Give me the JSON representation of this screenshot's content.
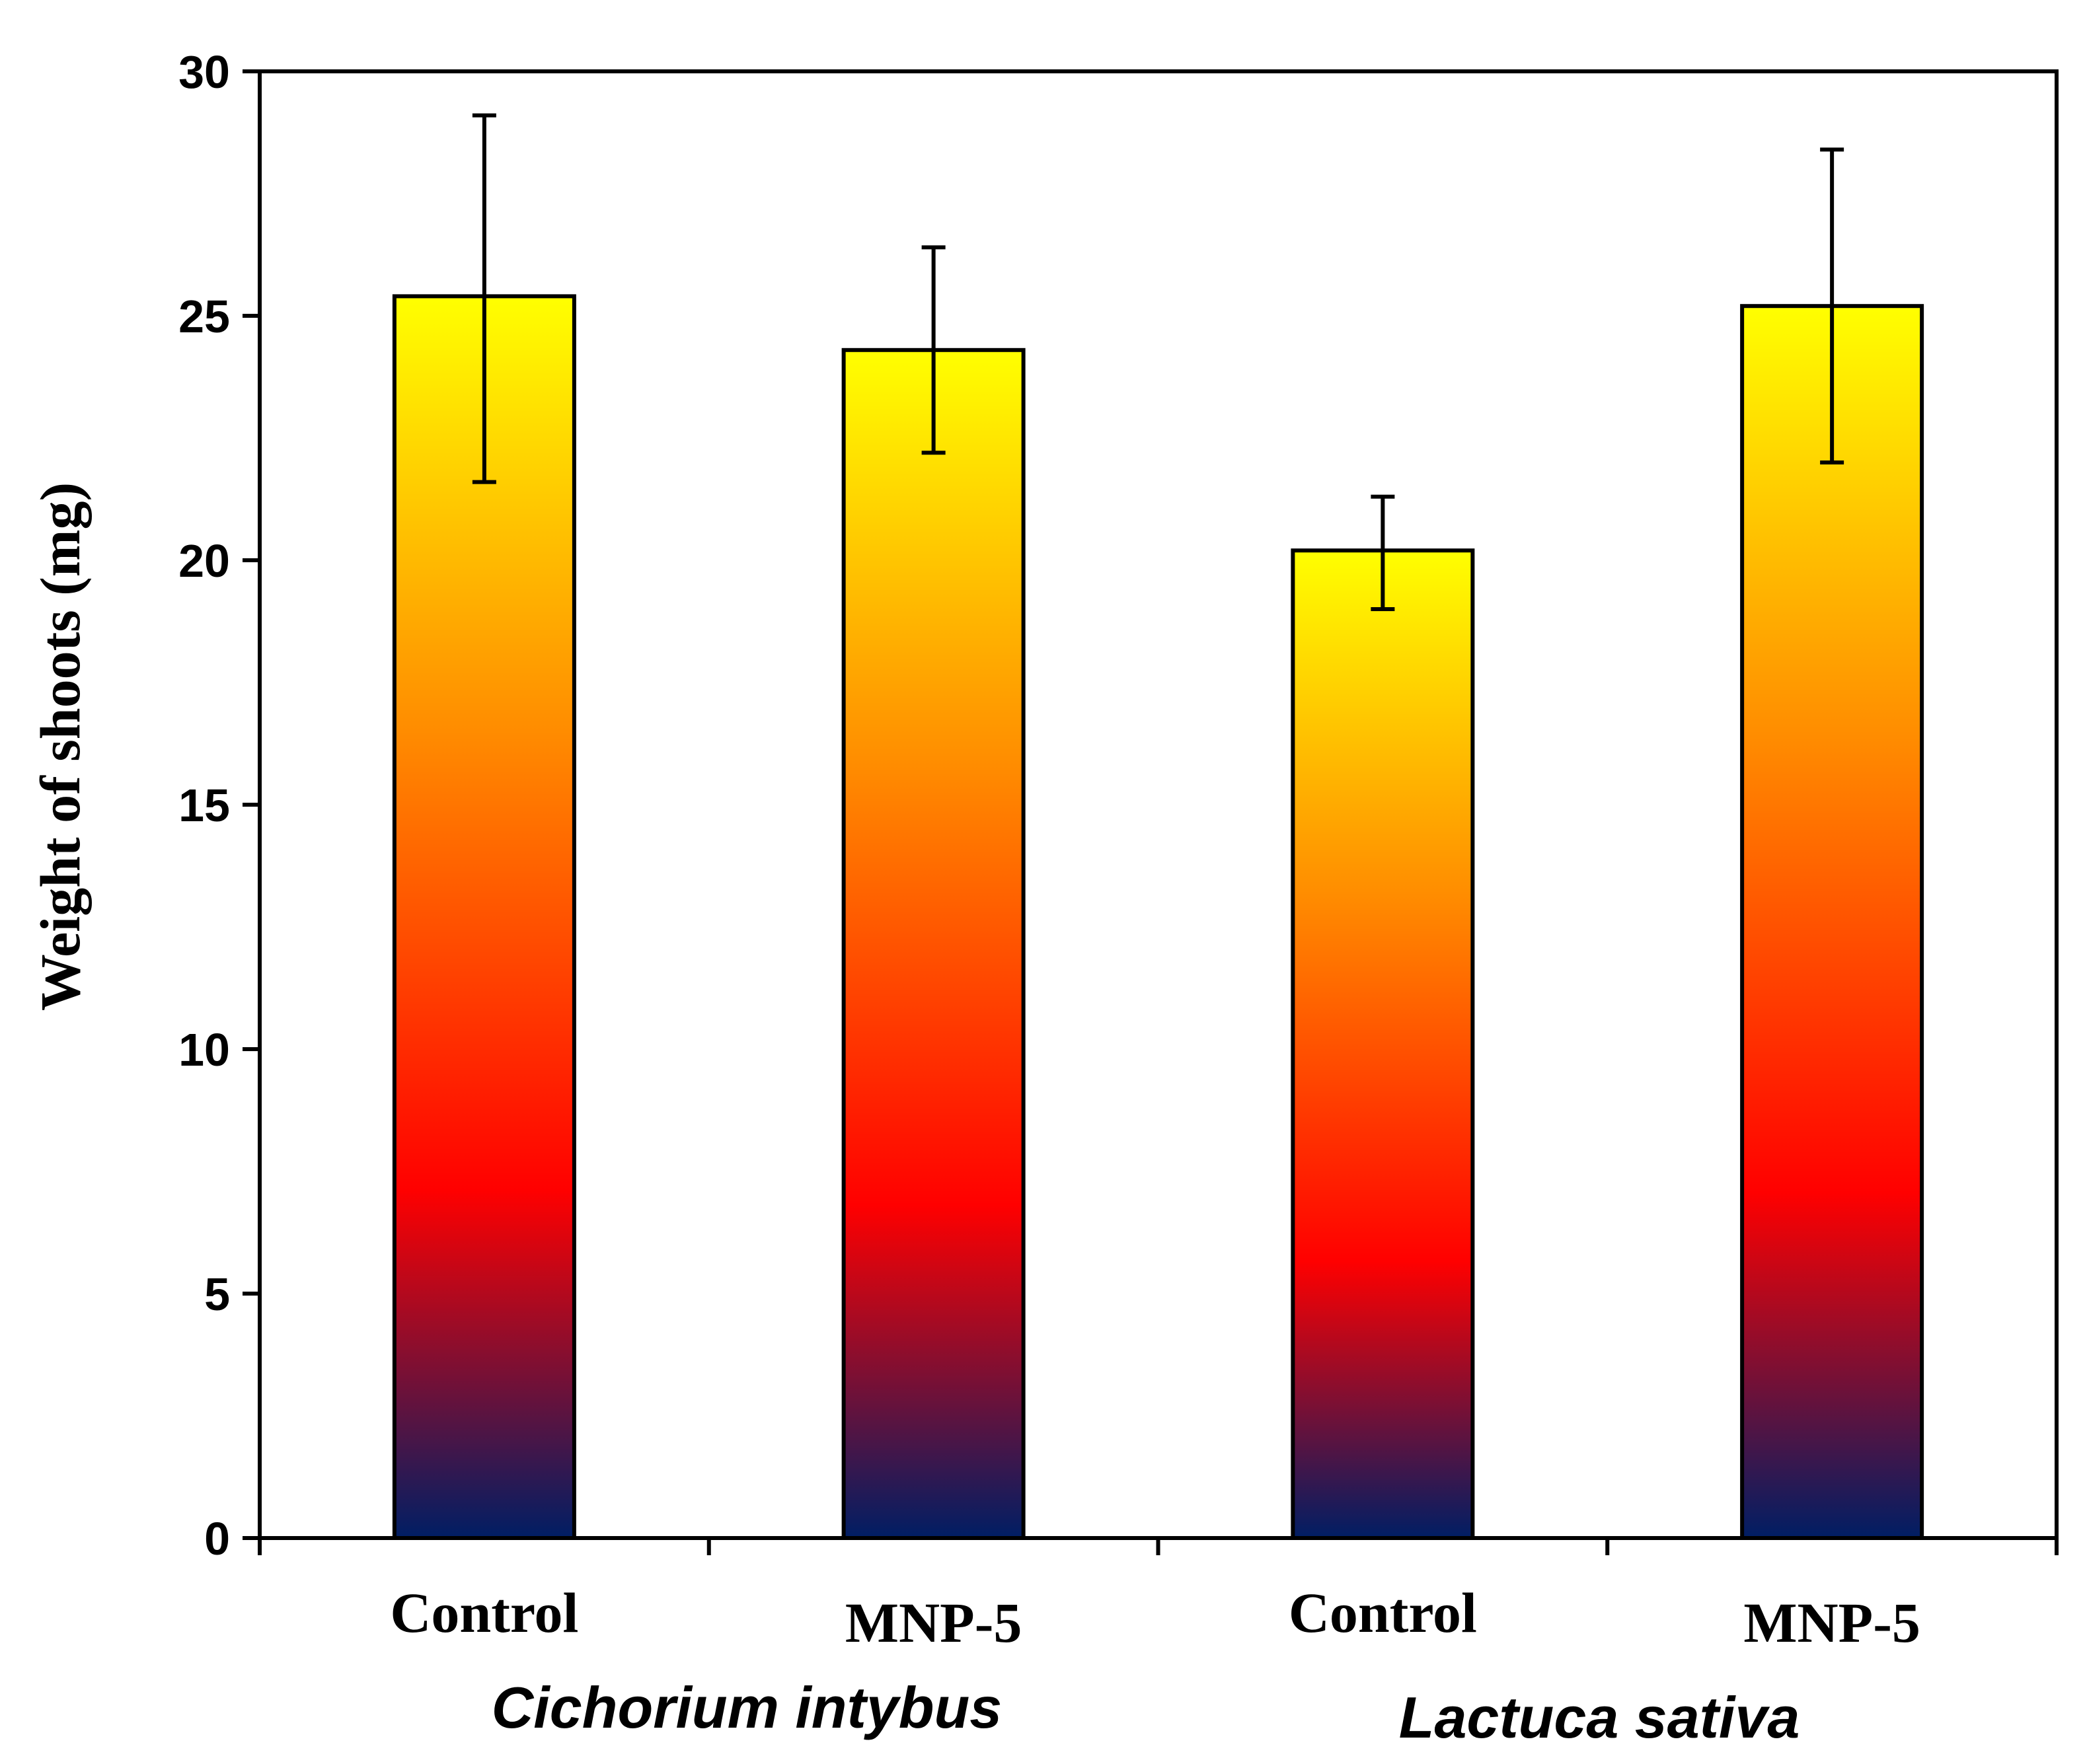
{
  "chart_data": {
    "type": "bar",
    "title": "",
    "xlabel": "",
    "ylabel": "Weight of shoots  (mg)",
    "ylim": [
      0,
      30
    ],
    "yticks": [
      "0",
      "5",
      "10",
      "15",
      "20",
      "25",
      "30"
    ],
    "categories": [
      "Control",
      "MNP-5",
      "Control",
      "MNP-5"
    ],
    "groups": [
      {
        "label": "Cichorium intybus",
        "categories": [
          0,
          1
        ]
      },
      {
        "label": "Lactuca sativa",
        "categories": [
          2,
          3
        ]
      }
    ],
    "series": [
      {
        "values": [
          25.4,
          24.3,
          20.2,
          25.2
        ],
        "error_low": [
          21.6,
          22.2,
          19.0,
          22.0
        ],
        "error_high": [
          29.1,
          26.4,
          21.3,
          28.4
        ]
      }
    ],
    "grid": false,
    "legend": "none",
    "colors": {
      "bar_gradient_top": "#ffff00",
      "bar_gradient_mid1": "#ff8c00",
      "bar_gradient_mid2": "#ff0000",
      "bar_gradient_bottom": "#001e64",
      "axis": "#000000",
      "background": "#ffffff"
    }
  }
}
